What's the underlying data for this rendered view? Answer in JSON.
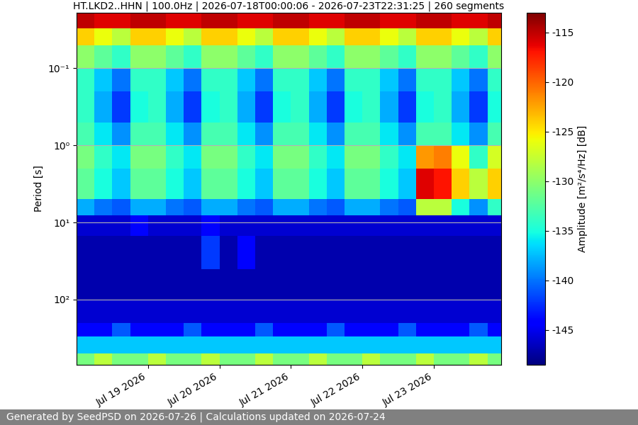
{
  "chart_data": {
    "type": "heatmap",
    "title": "HT.LKD2..HHN | 100.0Hz | 2026-07-18T00:00:06 - 2026-07-23T22:31:25 | 260 segments",
    "ylabel": "Period [s]",
    "x": [
      "2026-07-18T00:00:06",
      "2026-07-18T06:00:00",
      "2026-07-18T12:00:00",
      "2026-07-18T18:00:00",
      "2026-07-19T00:00:00",
      "2026-07-19T06:00:00",
      "2026-07-19T12:00:00",
      "2026-07-19T18:00:00",
      "2026-07-20T00:00:00",
      "2026-07-20T06:00:00",
      "2026-07-20T12:00:00",
      "2026-07-20T18:00:00",
      "2026-07-21T00:00:00",
      "2026-07-21T06:00:00",
      "2026-07-21T12:00:00",
      "2026-07-21T18:00:00",
      "2026-07-22T00:00:00",
      "2026-07-22T06:00:00",
      "2026-07-22T12:00:00",
      "2026-07-22T18:00:00",
      "2026-07-23T00:00:00",
      "2026-07-23T06:00:00",
      "2026-07-23T12:00:00",
      "2026-07-23T18:00:00",
      "2026-07-23T22:31:25"
    ],
    "y": [
      0.019,
      0.03,
      0.05,
      0.1,
      0.2,
      0.5,
      1,
      2,
      5,
      8,
      15,
      40,
      100,
      200,
      300,
      500,
      700
    ],
    "cells": [
      [
        -115,
        -116,
        -116,
        -115,
        -115,
        -116,
        -116,
        -115,
        -115,
        -116,
        -116,
        -115,
        -115,
        -116,
        -116,
        -115,
        -115,
        -116,
        -116,
        -115,
        -115,
        -116,
        -116,
        -115
      ],
      [
        -124,
        -126,
        -128,
        -124,
        -124,
        -126,
        -128,
        -124,
        -124,
        -126,
        -128,
        -124,
        -124,
        -126,
        -128,
        -124,
        -124,
        -126,
        -128,
        -124,
        -124,
        -126,
        -128,
        -124
      ],
      [
        -130,
        -132,
        -134,
        -130,
        -130,
        -132,
        -134,
        -130,
        -130,
        -132,
        -134,
        -130,
        -130,
        -132,
        -134,
        -130,
        -130,
        -132,
        -134,
        -130,
        -130,
        -132,
        -134,
        -130
      ],
      [
        -134,
        -137,
        -140,
        -134,
        -134,
        -137,
        -140,
        -134,
        -134,
        -137,
        -140,
        -134,
        -134,
        -137,
        -140,
        -134,
        -134,
        -137,
        -140,
        -134,
        -134,
        -137,
        -140,
        -134
      ],
      [
        -134,
        -138,
        -142,
        -135,
        -134,
        -138,
        -142,
        -135,
        -134,
        -138,
        -142,
        -135,
        -134,
        -138,
        -142,
        -135,
        -134,
        -138,
        -142,
        -135,
        -134,
        -138,
        -142,
        -135
      ],
      [
        -133,
        -136,
        -139,
        -133,
        -133,
        -136,
        -139,
        -133,
        -133,
        -136,
        -139,
        -133,
        -133,
        -136,
        -139,
        -133,
        -133,
        -136,
        -139,
        -133,
        -133,
        -136,
        -139,
        -133
      ],
      [
        -131,
        -134,
        -136,
        -131,
        -131,
        -134,
        -136,
        -131,
        -131,
        -134,
        -136,
        -131,
        -131,
        -134,
        -136,
        -131,
        -131,
        -134,
        -136,
        -122,
        -121,
        -126,
        -134,
        -127
      ],
      [
        -132,
        -135,
        -137,
        -132,
        -132,
        -135,
        -137,
        -132,
        -132,
        -135,
        -137,
        -132,
        -132,
        -135,
        -137,
        -132,
        -132,
        -135,
        -137,
        -116,
        -117,
        -124,
        -128,
        -124
      ],
      [
        -138,
        -140,
        -141,
        -138,
        -138,
        -140,
        -141,
        -138,
        -138,
        -140,
        -141,
        -138,
        -138,
        -140,
        -141,
        -138,
        -138,
        -140,
        -141,
        -128,
        -128,
        -135,
        -139,
        -134
      ],
      [
        -146,
        -146,
        -146,
        -144,
        -146,
        -146,
        -146,
        -144,
        -146,
        -146,
        -146,
        -146,
        -146,
        -146,
        -146,
        -146,
        -146,
        -146,
        -146,
        -146,
        -146,
        -146,
        -146,
        -146
      ],
      [
        -147,
        -147,
        -147,
        -147,
        -147,
        -147,
        -147,
        -142,
        -147,
        -144,
        -147,
        -147,
        -147,
        -147,
        -147,
        -147,
        -147,
        -147,
        -147,
        -147,
        -147,
        -147,
        -147,
        -147
      ],
      [
        -147,
        -147,
        -147,
        -147,
        -147,
        -147,
        -147,
        -147,
        -147,
        -147,
        -147,
        -147,
        -147,
        -147,
        -147,
        -147,
        -147,
        -147,
        -147,
        -147,
        -147,
        -147,
        -147,
        -147
      ],
      [
        -146,
        -146,
        -146,
        -146,
        -146,
        -146,
        -146,
        -146,
        -146,
        -146,
        -146,
        -146,
        -146,
        -146,
        -146,
        -146,
        -146,
        -146,
        -146,
        -146,
        -146,
        -146,
        -146,
        -146
      ],
      [
        -144,
        -144,
        -141,
        -144,
        -144,
        -144,
        -141,
        -144,
        -144,
        -144,
        -141,
        -144,
        -144,
        -144,
        -141,
        -144,
        -144,
        -144,
        -141,
        -144,
        -144,
        -144,
        -141,
        -144
      ],
      [
        -137,
        -137,
        -137,
        -137,
        -137,
        -137,
        -137,
        -137,
        -137,
        -137,
        -137,
        -137,
        -137,
        -137,
        -137,
        -137,
        -137,
        -137,
        -137,
        -137,
        -137,
        -137,
        -137,
        -137
      ],
      [
        -131,
        -128,
        -131,
        -131,
        -128,
        -131,
        -131,
        -128,
        -131,
        -131,
        -128,
        -131,
        -131,
        -128,
        -131,
        -131,
        -128,
        -131,
        -131,
        -128,
        -131,
        -131,
        -128,
        -131
      ]
    ],
    "xlim": [
      "2026-07-18T00:00:06",
      "2026-07-23T22:31:25"
    ],
    "xticks": [
      {
        "value": "2026-07-19T00:00:00",
        "label": "Jul 19 2026"
      },
      {
        "value": "2026-07-20T00:00:00",
        "label": "Jul 20 2026"
      },
      {
        "value": "2026-07-21T00:00:00",
        "label": "Jul 21 2026"
      },
      {
        "value": "2026-07-22T00:00:00",
        "label": "Jul 22 2026"
      },
      {
        "value": "2026-07-23T00:00:00",
        "label": "Jul 23 2026"
      }
    ],
    "ylim": [
      700,
      0.019
    ],
    "yticks": [
      {
        "value": 0.1,
        "label": "10⁻¹"
      },
      {
        "value": 1,
        "label": "10⁰"
      },
      {
        "value": 10,
        "label": "10¹"
      },
      {
        "value": 100,
        "label": "10²"
      }
    ],
    "log": "y",
    "grid": true,
    "colorbar": {
      "label": "Amplitude [m²/s⁴/Hz] [dB]",
      "lim": [
        -148.5,
        -113
      ],
      "ticks": [
        -145,
        -140,
        -135,
        -130,
        -125,
        -120,
        -115
      ]
    },
    "footer": "Generated by SeedPSD on 2026-07-26 | Calculations updated on 2026-07-24"
  }
}
